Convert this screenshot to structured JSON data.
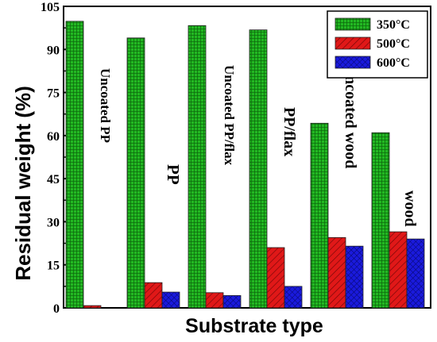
{
  "chart_data": {
    "type": "bar",
    "title": "",
    "xlabel": "Substrate type",
    "ylabel": "Residual weight (%)",
    "ylim": [
      0,
      105
    ],
    "yticks": [
      0,
      15,
      30,
      45,
      60,
      75,
      90,
      105
    ],
    "categories": [
      "Uncoated PP",
      "PP",
      "Uncoated PP/flax",
      "PP/flax",
      "uncoated wood",
      "wood"
    ],
    "series": [
      {
        "name": "350°C",
        "color": "#22b822",
        "values": [
          99.8,
          94.0,
          98.3,
          96.8,
          64.3,
          61.0
        ]
      },
      {
        "name": "500°C",
        "color": "#e01818",
        "values": [
          0.8,
          8.8,
          5.3,
          21.0,
          24.5,
          26.5
        ]
      },
      {
        "name": "600°C",
        "color": "#1a1adc",
        "values": [
          0,
          5.5,
          4.3,
          7.5,
          21.5,
          24.0
        ]
      }
    ],
    "legend_position": "top-right",
    "grid": false
  }
}
